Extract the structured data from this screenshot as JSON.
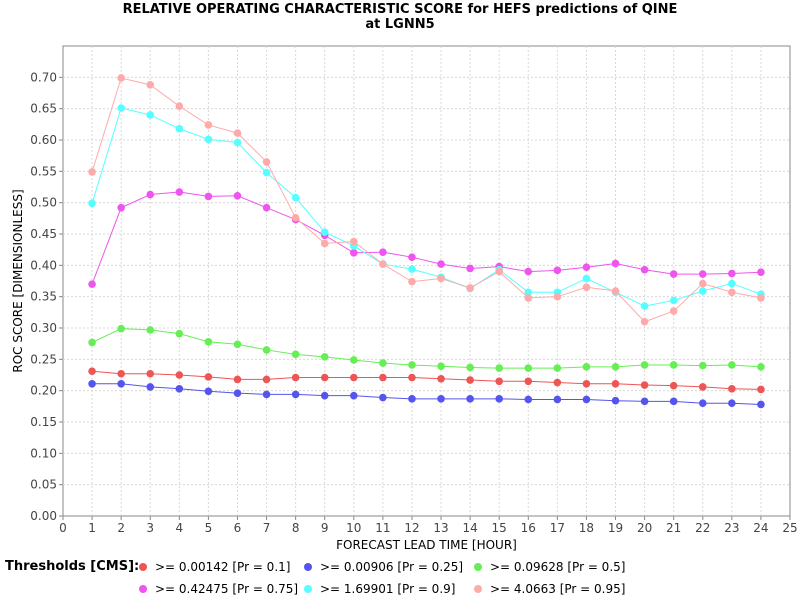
{
  "chart_data": {
    "type": "line",
    "title": "RELATIVE OPERATING CHARACTERISTIC SCORE for HEFS predictions of QINE",
    "subtitle": "at LGNN5",
    "xlabel": "FORECAST LEAD TIME [HOUR]",
    "ylabel": "ROC SCORE [DIMENSIONLESS]",
    "xlim": [
      0,
      25
    ],
    "ylim": [
      0,
      0.75
    ],
    "grid": true,
    "x_ticks": [
      "0",
      "1",
      "2",
      "3",
      "4",
      "5",
      "6",
      "7",
      "8",
      "9",
      "10",
      "11",
      "12",
      "13",
      "14",
      "15",
      "16",
      "17",
      "18",
      "19",
      "20",
      "21",
      "22",
      "23",
      "24",
      "25"
    ],
    "y_ticks": [
      "0.00",
      "0.05",
      "0.10",
      "0.15",
      "0.20",
      "0.25",
      "0.30",
      "0.35",
      "0.40",
      "0.45",
      "0.50",
      "0.55",
      "0.60",
      "0.65",
      "0.70"
    ],
    "legend_title": "Thresholds [CMS]:",
    "legend_position": "bottom",
    "x": [
      1,
      2,
      3,
      4,
      5,
      6,
      7,
      8,
      9,
      10,
      11,
      12,
      13,
      14,
      15,
      16,
      17,
      18,
      19,
      20,
      21,
      22,
      23,
      24
    ],
    "series": [
      {
        "name": ">= 0.00142 [Pr = 0.1]",
        "color": "#ee5555",
        "values": [
          0.231,
          0.227,
          0.227,
          0.225,
          0.222,
          0.218,
          0.218,
          0.221,
          0.221,
          0.221,
          0.221,
          0.221,
          0.219,
          0.217,
          0.215,
          0.215,
          0.213,
          0.211,
          0.211,
          0.209,
          0.208,
          0.206,
          0.203,
          0.202
        ]
      },
      {
        "name": ">= 0.00906 [Pr = 0.25]",
        "color": "#5555ee",
        "values": [
          0.211,
          0.211,
          0.206,
          0.203,
          0.199,
          0.196,
          0.194,
          0.194,
          0.192,
          0.192,
          0.189,
          0.187,
          0.187,
          0.187,
          0.187,
          0.186,
          0.186,
          0.186,
          0.184,
          0.183,
          0.183,
          0.18,
          0.18,
          0.178
        ]
      },
      {
        "name": ">= 0.09628 [Pr = 0.5]",
        "color": "#66ee55",
        "values": [
          0.277,
          0.299,
          0.297,
          0.291,
          0.278,
          0.274,
          0.265,
          0.258,
          0.254,
          0.249,
          0.244,
          0.241,
          0.239,
          0.237,
          0.236,
          0.236,
          0.236,
          0.238,
          0.238,
          0.241,
          0.241,
          0.24,
          0.241,
          0.238
        ]
      },
      {
        "name": ">= 0.42475 [Pr = 0.75]",
        "color": "#ee55ee",
        "values": [
          0.37,
          0.492,
          0.513,
          0.517,
          0.51,
          0.511,
          0.492,
          0.473,
          0.448,
          0.42,
          0.421,
          0.413,
          0.402,
          0.395,
          0.398,
          0.39,
          0.392,
          0.397,
          0.403,
          0.393,
          0.386,
          0.386,
          0.387,
          0.389
        ]
      },
      {
        "name": ">= 1.69901 [Pr = 0.9]",
        "color": "#55ffff",
        "values": [
          0.499,
          0.651,
          0.64,
          0.618,
          0.601,
          0.596,
          0.548,
          0.508,
          0.453,
          0.431,
          0.402,
          0.394,
          0.381,
          0.363,
          0.393,
          0.357,
          0.357,
          0.379,
          0.357,
          0.335,
          0.344,
          0.359,
          0.371,
          0.354
        ]
      },
      {
        "name": ">= 4.0663 [Pr = 0.95]",
        "color": "#ffaaaa",
        "values": [
          0.549,
          0.699,
          0.688,
          0.654,
          0.624,
          0.611,
          0.565,
          0.476,
          0.435,
          0.438,
          0.402,
          0.374,
          0.379,
          0.364,
          0.39,
          0.348,
          0.35,
          0.365,
          0.359,
          0.31,
          0.327,
          0.371,
          0.357,
          0.348
        ]
      }
    ]
  }
}
